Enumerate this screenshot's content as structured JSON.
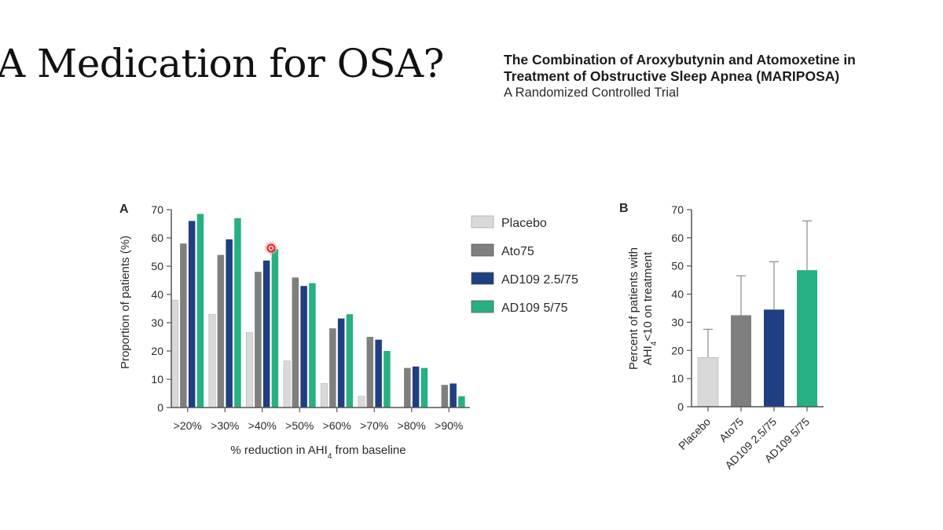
{
  "slide": {
    "title": "A Medication for OSA?"
  },
  "paper": {
    "title_line1": "The Combination of Aroxybutynin and Atomoxetine in",
    "title_line2": "Treatment of Obstructive Sleep Apnea (MARIPOSA)",
    "subtitle": "A Randomized Controlled Trial"
  },
  "colors": {
    "placebo": "#d9d9d9",
    "ato75": "#7f7f7f",
    "ad109_25": "#1f3f82",
    "ad109_5": "#27b083",
    "axis": "#555555",
    "cursor_marker": "#e3262b"
  },
  "chart_data": [
    {
      "panel": "A",
      "type": "bar",
      "categories": [
        ">20%",
        ">30%",
        ">40%",
        ">50%",
        ">60%",
        ">70%",
        ">80%",
        ">90%"
      ],
      "series": [
        {
          "name": "Placebo",
          "values": [
            38,
            33,
            26.5,
            16.5,
            8.5,
            4,
            0,
            0
          ]
        },
        {
          "name": "Ato75",
          "values": [
            58,
            54,
            48,
            46,
            28,
            25,
            14,
            8
          ]
        },
        {
          "name": "AD109 2.5/75",
          "values": [
            66,
            59.5,
            52,
            43,
            31.5,
            24,
            14.5,
            8.5
          ]
        },
        {
          "name": "AD109 5/75",
          "values": [
            68.5,
            67,
            56,
            44,
            33,
            20,
            14,
            4
          ]
        }
      ],
      "xlabel_main": "% reduction in AHI",
      "xlabel_sub": "4",
      "xlabel_tail": " from baseline",
      "ylabel": "Proportion of patients (%)",
      "ylim": [
        0,
        70
      ],
      "yticks": [
        0,
        10,
        20,
        30,
        40,
        50,
        60,
        70
      ],
      "legend_position": "right",
      "grid": false
    },
    {
      "panel": "B",
      "type": "bar",
      "categories": [
        "Placebo",
        "Ato75",
        "AD109 2.5/75",
        "AD109 5/75"
      ],
      "values": [
        17.5,
        32.5,
        34.5,
        48.5
      ],
      "error_upper": [
        27.5,
        46.5,
        51.5,
        66
      ],
      "ylabel_line1": "Percent of patients with",
      "ylabel_line2_main": "AHI",
      "ylabel_line2_sub": "4",
      "ylabel_line2_tail": "<10 on treatment",
      "ylim": [
        0,
        70
      ],
      "yticks": [
        0,
        10,
        20,
        30,
        40,
        50,
        60,
        70
      ],
      "grid": false
    }
  ]
}
